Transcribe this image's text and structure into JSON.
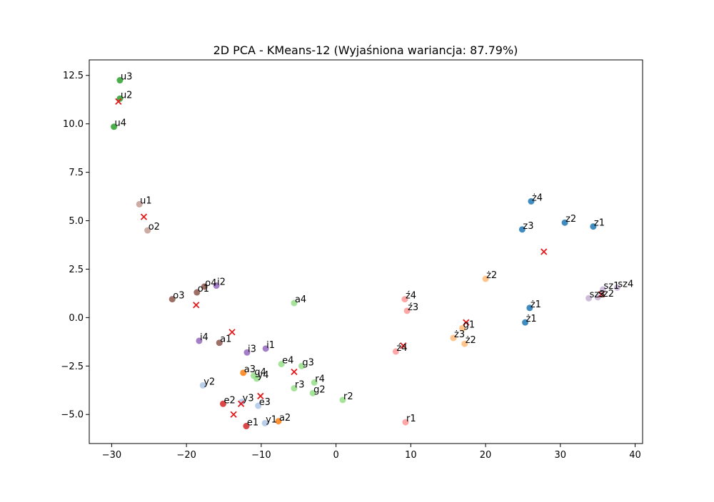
{
  "chart_data": {
    "type": "scatter",
    "title": "2D PCA - KMeans-12 (Wyjaśniona wariancja: 87.79%)",
    "xlabel": "",
    "ylabel": "",
    "xlim": [
      -33,
      41
    ],
    "ylim": [
      -6.5,
      13.3
    ],
    "xticks": [
      -30,
      -20,
      -10,
      0,
      10,
      20,
      30,
      40
    ],
    "yticks": [
      -5.0,
      -2.5,
      0.0,
      2.5,
      5.0,
      7.5,
      10.0,
      12.5
    ],
    "xtick_labels": [
      "−30",
      "−20",
      "−10",
      "0",
      "10",
      "20",
      "30",
      "40"
    ],
    "ytick_labels": [
      "−5.0",
      "−2.5",
      "0.0",
      "2.5",
      "5.0",
      "7.5",
      "10.0",
      "12.5"
    ],
    "grid": false,
    "legend": "none",
    "cluster_colors": [
      "#1f77b4",
      "#ff7f0e",
      "#2ca02c",
      "#d62728",
      "#9467bd",
      "#8c564b",
      "#e377c2",
      "#aec7e8",
      "#ffbb78",
      "#98df8a",
      "#ff9896",
      "#c5b0d5",
      "#c49c94"
    ],
    "centroid_color": "#e31a1c",
    "points": [
      {
        "label": "u3",
        "x": -28.9,
        "y": 12.25,
        "cluster": 2
      },
      {
        "label": "u2",
        "x": -28.9,
        "y": 11.3,
        "cluster": 2
      },
      {
        "label": "u4",
        "x": -29.7,
        "y": 9.85,
        "cluster": 2
      },
      {
        "label": "u1",
        "x": -26.3,
        "y": 5.85,
        "cluster": 12
      },
      {
        "label": "o2",
        "x": -25.2,
        "y": 4.5,
        "cluster": 12
      },
      {
        "label": "o4",
        "x": -17.6,
        "y": 1.6,
        "cluster": 5
      },
      {
        "label": "i2",
        "x": -16.0,
        "y": 1.65,
        "cluster": 4
      },
      {
        "label": "o1",
        "x": -18.6,
        "y": 1.3,
        "cluster": 5
      },
      {
        "label": "o3",
        "x": -21.9,
        "y": 0.95,
        "cluster": 5
      },
      {
        "label": "i4",
        "x": -18.3,
        "y": -1.2,
        "cluster": 4
      },
      {
        "label": "a1",
        "x": -15.6,
        "y": -1.3,
        "cluster": 5
      },
      {
        "label": "i3",
        "x": -11.9,
        "y": -1.8,
        "cluster": 4
      },
      {
        "label": "i1",
        "x": -9.4,
        "y": -1.6,
        "cluster": 4
      },
      {
        "label": "a4",
        "x": -5.6,
        "y": 0.75,
        "cluster": 9
      },
      {
        "label": "e4",
        "x": -7.3,
        "y": -2.4,
        "cluster": 9
      },
      {
        "label": "g3",
        "x": -4.6,
        "y": -2.5,
        "cluster": 9
      },
      {
        "label": "a3",
        "x": -12.4,
        "y": -2.85,
        "cluster": 1
      },
      {
        "label": "g4",
        "x": -11.0,
        "y": -3.0,
        "cluster": 9
      },
      {
        "label": "y4",
        "x": -10.6,
        "y": -3.15,
        "cluster": 9
      },
      {
        "label": "r4",
        "x": -2.9,
        "y": -3.35,
        "cluster": 9
      },
      {
        "label": "r3",
        "x": -5.6,
        "y": -3.65,
        "cluster": 9
      },
      {
        "label": "g2",
        "x": -3.1,
        "y": -3.9,
        "cluster": 9
      },
      {
        "label": "r2",
        "x": 0.9,
        "y": -4.25,
        "cluster": 9
      },
      {
        "label": "y2",
        "x": -17.8,
        "y": -3.5,
        "cluster": 7
      },
      {
        "label": "e2",
        "x": -15.1,
        "y": -4.45,
        "cluster": 3
      },
      {
        "label": "y3",
        "x": -12.6,
        "y": -4.35,
        "cluster": 7
      },
      {
        "label": "e3",
        "x": -10.4,
        "y": -4.55,
        "cluster": 7
      },
      {
        "label": "e1",
        "x": -12.0,
        "y": -5.6,
        "cluster": 3
      },
      {
        "label": "y1",
        "x": -9.5,
        "y": -5.45,
        "cluster": 7
      },
      {
        "label": "a2",
        "x": -7.7,
        "y": -5.35,
        "cluster": 1
      },
      {
        "label": "ź4",
        "x": 9.2,
        "y": 0.95,
        "cluster": 10
      },
      {
        "label": "ź3",
        "x": 9.5,
        "y": 0.35,
        "cluster": 10
      },
      {
        "label": "ź4",
        "x": 8.0,
        "y": -1.75,
        "cluster": 10
      },
      {
        "label": "r1",
        "x": 9.3,
        "y": -5.4,
        "cluster": 10
      },
      {
        "label": "ż2",
        "x": 20.0,
        "y": 2.0,
        "cluster": 8
      },
      {
        "label": "g1",
        "x": 16.9,
        "y": -0.55,
        "cluster": 8
      },
      {
        "label": "ż3",
        "x": 15.7,
        "y": -1.05,
        "cluster": 8
      },
      {
        "label": "ż2",
        "x": 17.2,
        "y": -1.35,
        "cluster": 8
      },
      {
        "label": "ż4",
        "x": 26.1,
        "y": 6.0,
        "cluster": 0
      },
      {
        "label": "z2",
        "x": 30.6,
        "y": 4.9,
        "cluster": 0
      },
      {
        "label": "z1",
        "x": 34.4,
        "y": 4.7,
        "cluster": 0
      },
      {
        "label": "z3",
        "x": 24.9,
        "y": 4.55,
        "cluster": 0
      },
      {
        "label": "ż1",
        "x": 25.9,
        "y": 0.5,
        "cluster": 0
      },
      {
        "label": "ż1",
        "x": 25.3,
        "y": -0.25,
        "cluster": 0
      },
      {
        "label": "sz1",
        "x": 35.7,
        "y": 1.45,
        "cluster": 11
      },
      {
        "label": "sz4",
        "x": 37.6,
        "y": 1.55,
        "cluster": 11
      },
      {
        "label": "sz3",
        "x": 33.8,
        "y": 1.0,
        "cluster": 11
      },
      {
        "label": "sz2",
        "x": 35.0,
        "y": 1.05,
        "cluster": 11
      }
    ],
    "centroids": [
      {
        "x": -29.1,
        "y": 11.15
      },
      {
        "x": -25.7,
        "y": 5.2
      },
      {
        "x": -18.7,
        "y": 0.65
      },
      {
        "x": -13.9,
        "y": -0.75
      },
      {
        "x": -5.6,
        "y": -2.8
      },
      {
        "x": -10.1,
        "y": -4.05
      },
      {
        "x": -12.7,
        "y": -4.45
      },
      {
        "x": -13.7,
        "y": -5.0
      },
      {
        "x": 9.0,
        "y": -1.45
      },
      {
        "x": 17.4,
        "y": -0.25
      },
      {
        "x": 27.8,
        "y": 3.4
      },
      {
        "x": 35.5,
        "y": 1.2
      }
    ]
  }
}
